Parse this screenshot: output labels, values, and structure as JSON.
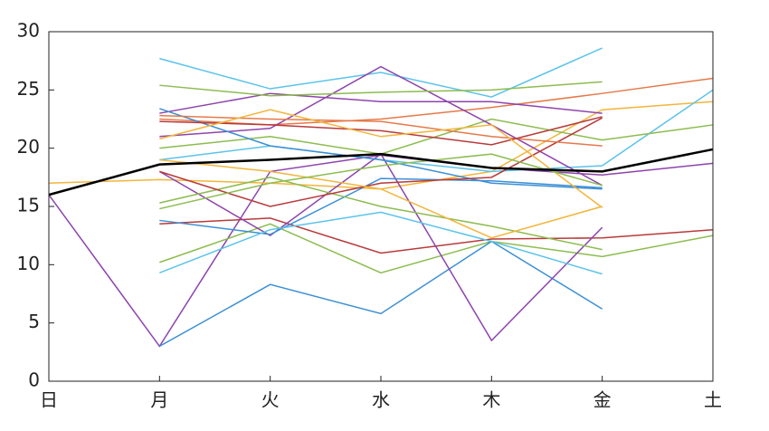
{
  "chart_data": {
    "type": "line",
    "categories": [
      "日",
      "月",
      "火",
      "水",
      "木",
      "金",
      "土"
    ],
    "ylim": [
      0,
      30
    ],
    "yticks": [
      0,
      5,
      10,
      15,
      20,
      25,
      30
    ],
    "series": [
      {
        "color": "#8e44ad",
        "values": [
          16,
          3,
          18,
          19.4,
          18.3,
          17.7,
          18.7
        ]
      },
      {
        "color": "#f2b53a",
        "values": [
          17,
          17.3,
          17,
          16.5,
          18,
          23.3,
          24
        ]
      },
      {
        "color": "#e5794a",
        "values": [
          null,
          22.5,
          22,
          22.5,
          23.5,
          24.7,
          26
        ]
      },
      {
        "color": "#5bc3ea",
        "values": [
          null,
          27.7,
          25.1,
          26.5,
          24.4,
          28.6,
          null
        ]
      },
      {
        "color": "#5bc3ea",
        "values": [
          null,
          19,
          20.2,
          19,
          18,
          18.5,
          25
        ]
      },
      {
        "color": "#8cbc4f",
        "values": [
          null,
          20,
          21,
          19.5,
          22.5,
          20.7,
          22
        ]
      },
      {
        "color": "#b83a3a",
        "values": [
          null,
          13.5,
          14,
          11,
          12.2,
          12.3,
          13
        ]
      },
      {
        "color": "#8cbc4f",
        "values": [
          null,
          10.2,
          13.5,
          9.3,
          12,
          10.7,
          12.5
        ]
      },
      {
        "color": "#3b8fd4",
        "values": [
          null,
          3,
          8.3,
          5.8,
          12,
          6.2,
          null
        ]
      },
      {
        "color": "#8e44ad",
        "values": [
          null,
          18,
          12.5,
          19.5,
          3.5,
          13.2,
          null
        ]
      },
      {
        "color": "#8e44ad",
        "values": [
          null,
          23,
          24.7,
          24,
          24,
          23,
          null
        ]
      },
      {
        "color": "#8e44ad",
        "values": [
          null,
          21,
          21.7,
          27,
          22,
          16.8,
          null
        ]
      },
      {
        "color": "#8cbc4f",
        "values": [
          null,
          25.4,
          24.5,
          24.8,
          25,
          25.7,
          null
        ]
      },
      {
        "color": "#3b8fd4",
        "values": [
          null,
          23.4,
          20.2,
          19,
          17,
          16.5,
          null
        ]
      },
      {
        "color": "#3b8fd4",
        "values": [
          null,
          13.8,
          12.6,
          17.4,
          17.2,
          16.6,
          null
        ]
      },
      {
        "color": "#5bc3ea",
        "values": [
          null,
          9.3,
          13,
          14.5,
          12,
          9.2,
          null
        ]
      },
      {
        "color": "#8cbc4f",
        "values": [
          null,
          15.3,
          17.5,
          15,
          13.3,
          11.3,
          null
        ]
      },
      {
        "color": "#b83a3a",
        "values": [
          null,
          18,
          15,
          17,
          17.5,
          22.6,
          null
        ]
      },
      {
        "color": "#e5794a",
        "values": [
          null,
          22.8,
          22.5,
          22.3,
          21,
          20.2,
          null
        ]
      },
      {
        "color": "#b83a3a",
        "values": [
          null,
          22.3,
          22,
          21.5,
          20.3,
          22.7,
          null
        ]
      },
      {
        "color": "#f2b53a",
        "values": [
          null,
          20.8,
          23.3,
          21,
          22,
          14.9,
          null
        ]
      },
      {
        "color": "#f2b53a",
        "values": [
          null,
          19,
          18,
          16.5,
          12.3,
          15,
          null
        ]
      },
      {
        "color": "#8cbc4f",
        "values": [
          null,
          14.8,
          17,
          18.5,
          19.5,
          16.8,
          null
        ]
      },
      {
        "color": "#000000",
        "values": [
          16,
          18.6,
          19,
          19.5,
          18.3,
          18,
          19.9
        ],
        "width": 2.5
      }
    ]
  }
}
